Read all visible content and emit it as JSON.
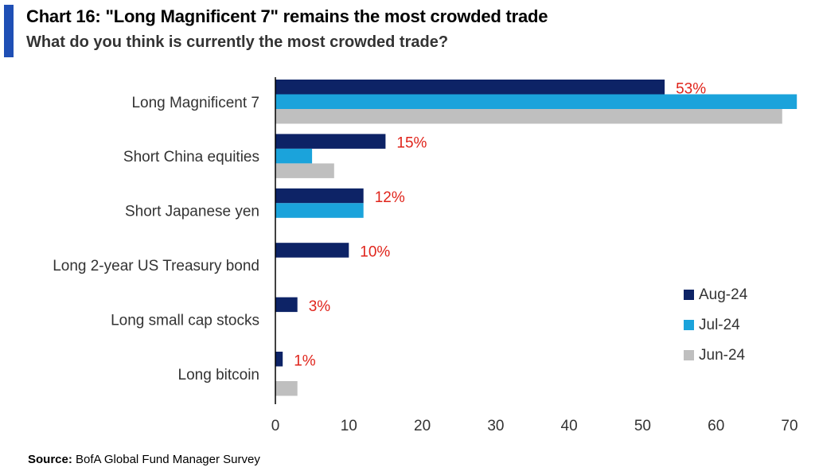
{
  "header": {
    "title": "Chart 16: \"Long Magnificent 7\" remains the most crowded trade",
    "subtitle": "What do you think is currently the most crowded trade?"
  },
  "footer": {
    "source_label": "Source:",
    "source_text": "BofA Global Fund Manager Survey"
  },
  "colors": {
    "accent": "#1F4FB5",
    "label_red": "#E0241B",
    "axis": "#000000"
  },
  "chart_data": {
    "type": "bar",
    "orientation": "horizontal",
    "categories": [
      "Long Magnificent 7",
      "Short China equities",
      "Short Japanese yen",
      "Long 2-year US Treasury bond",
      "Long small cap stocks",
      "Long bitcoin"
    ],
    "series": [
      {
        "name": "Aug-24",
        "color": "#0D2366",
        "values": [
          53,
          15,
          12,
          10,
          3,
          1
        ]
      },
      {
        "name": "Jul-24",
        "color": "#1BA3DB",
        "values": [
          71,
          5,
          12,
          null,
          null,
          null
        ]
      },
      {
        "name": "Jun-24",
        "color": "#BFBFBF",
        "values": [
          69,
          8,
          null,
          null,
          null,
          3
        ]
      }
    ],
    "data_labels": [
      "53%",
      "15%",
      "12%",
      "10%",
      "3%",
      "1%"
    ],
    "xlim": [
      0,
      70
    ],
    "xticks": [
      "0",
      "10",
      "20",
      "30",
      "40",
      "50",
      "60",
      "70"
    ],
    "grid": false,
    "legend_position": "right"
  }
}
